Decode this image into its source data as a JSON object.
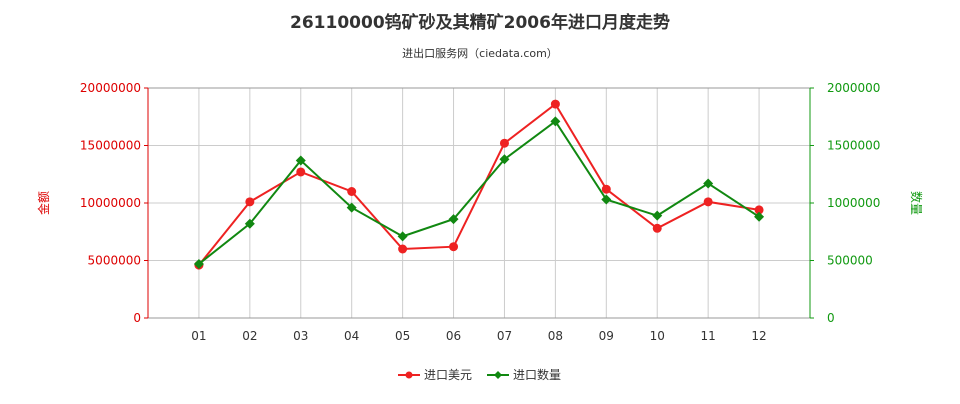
{
  "chart_data": {
    "type": "line",
    "title": "26110000钨矿砂及其精矿2006年进口月度走势",
    "subtitle": "进出口服务网（ciedata.com）",
    "categories": [
      "01",
      "02",
      "03",
      "04",
      "05",
      "06",
      "07",
      "08",
      "09",
      "10",
      "11",
      "12"
    ],
    "y_left": {
      "label": "金额",
      "range": [
        0,
        20000000
      ],
      "ticks": [
        "0",
        "5000000",
        "10000000",
        "15000000",
        "20000000"
      ]
    },
    "y_right": {
      "label": "数量",
      "range": [
        0,
        2000000
      ],
      "ticks": [
        "0",
        "500000",
        "1000000",
        "1500000",
        "2000000"
      ]
    },
    "series": [
      {
        "name": "进口美元",
        "axis": "left",
        "color": "#ee2222",
        "marker": "circle",
        "values": [
          4600000,
          10100000,
          12700000,
          11000000,
          6000000,
          6200000,
          15200000,
          18600000,
          11200000,
          7800000,
          10100000,
          9400000
        ]
      },
      {
        "name": "进口数量",
        "axis": "right",
        "color": "#118811",
        "marker": "diamond",
        "values": [
          470000,
          820000,
          1370000,
          960000,
          710000,
          860000,
          1380000,
          1710000,
          1030000,
          890000,
          1170000,
          880000
        ]
      }
    ],
    "grid": true,
    "legend_position": "bottom-center"
  }
}
